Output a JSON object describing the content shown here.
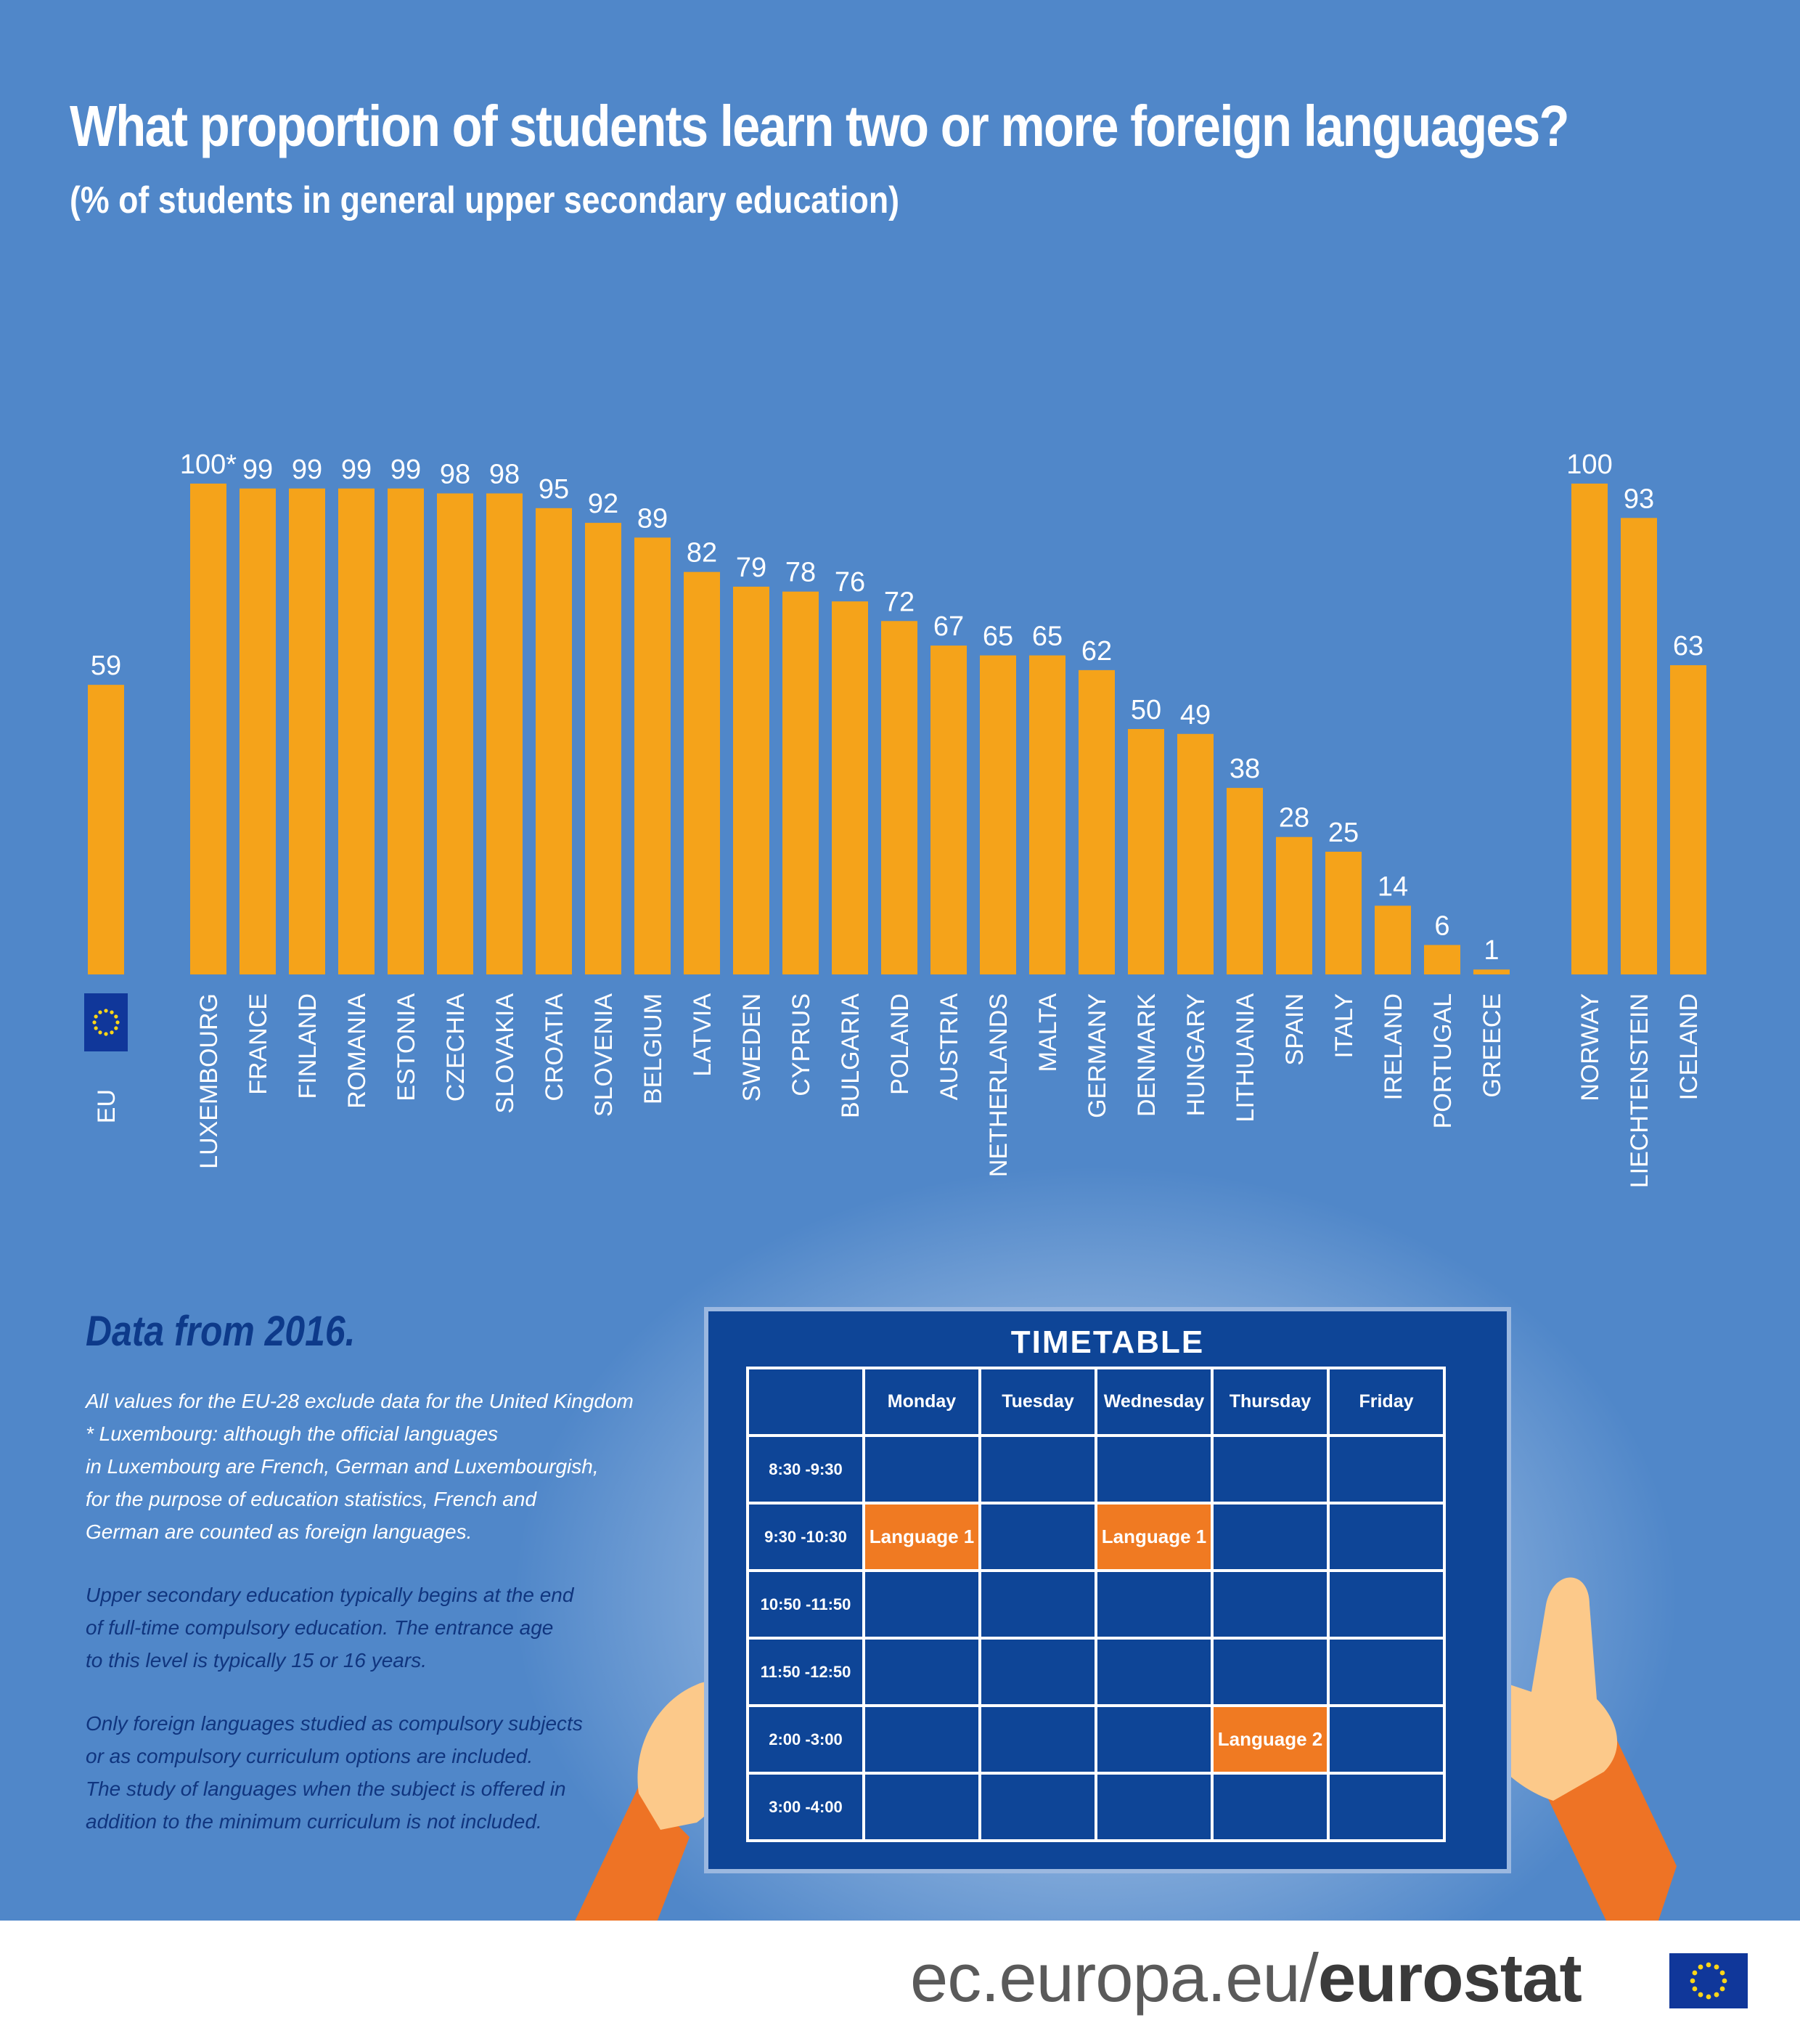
{
  "title": "What proportion of students learn two or more foreign languages?",
  "subtitle": "(% of students in general upper secondary education)",
  "chart_data": {
    "type": "bar",
    "title": "What proportion of students learn two or more foreign languages?",
    "ylabel": "",
    "ylim": [
      0,
      100
    ],
    "grid": false,
    "categories": [
      "EU",
      "LUXEMBOURG",
      "FRANCE",
      "FINLAND",
      "ROMANIA",
      "ESTONIA",
      "CZECHIA",
      "SLOVAKIA",
      "CROATIA",
      "SLOVENIA",
      "BELGIUM",
      "LATVIA",
      "SWEDEN",
      "CYPRUS",
      "BULGARIA",
      "POLAND",
      "AUSTRIA",
      "NETHERLANDS",
      "MALTA",
      "GERMANY",
      "DENMARK",
      "HUNGARY",
      "LITHUANIA",
      "SPAIN",
      "ITALY",
      "IRELAND",
      "PORTUGAL",
      "GREECE",
      "NORWAY",
      "LIECHTENSTEIN",
      "ICELAND"
    ],
    "values": [
      59,
      100,
      99,
      99,
      99,
      99,
      98,
      98,
      95,
      92,
      89,
      82,
      79,
      78,
      76,
      72,
      67,
      65,
      65,
      62,
      50,
      49,
      38,
      28,
      25,
      14,
      6,
      1,
      100,
      93,
      63
    ],
    "value_labels": [
      "59",
      "100*",
      "99",
      "99",
      "99",
      "99",
      "98",
      "98",
      "95",
      "92",
      "89",
      "82",
      "79",
      "78",
      "76",
      "72",
      "67",
      "65",
      "65",
      "62",
      "50",
      "49",
      "38",
      "28",
      "25",
      "14",
      "6",
      "1",
      "100",
      "93",
      "63"
    ],
    "colors": {
      "bar": "#f5a31a",
      "background": "#5087c9"
    }
  },
  "notes": {
    "data_year": "Data from 2016.",
    "white_lines": [
      "All values for the EU-28 exclude data for the United Kingdom",
      "* Luxembourg: although the official languages",
      "in Luxembourg are French, German and Luxembourgish,",
      "for the purpose of education statistics, French and",
      "German are counted as foreign languages."
    ],
    "upper_secondary": [
      "Upper secondary education typically begins at the end",
      "of full-time compulsory education. The entrance age",
      "to this level is typically 15 or 16 years."
    ],
    "compulsory": [
      "Only foreign languages studied as compulsory subjects",
      "or as compulsory curriculum options are included.",
      "The study of languages when the subject is offered in",
      "addition to the minimum curriculum is not included."
    ]
  },
  "timetable": {
    "title": "TIMETABLE",
    "days": [
      "Monday",
      "Tuesday",
      "Wednesday",
      "Thursday",
      "Friday"
    ],
    "times": [
      "8:30 -9:30",
      "9:30 -10:30",
      "10:50 -11:50",
      "11:50 -12:50",
      "2:00 -3:00",
      "3:00 -4:00"
    ],
    "language_1": "Language 1",
    "language_2": "Language 2"
  },
  "footer": {
    "url_prefix": "ec.europa.eu/",
    "url_brand": "eurostat"
  },
  "icons": [
    "eu-flag-icon",
    "eurostat-flag-icon",
    "left-hand-icon",
    "right-hand-icon"
  ]
}
